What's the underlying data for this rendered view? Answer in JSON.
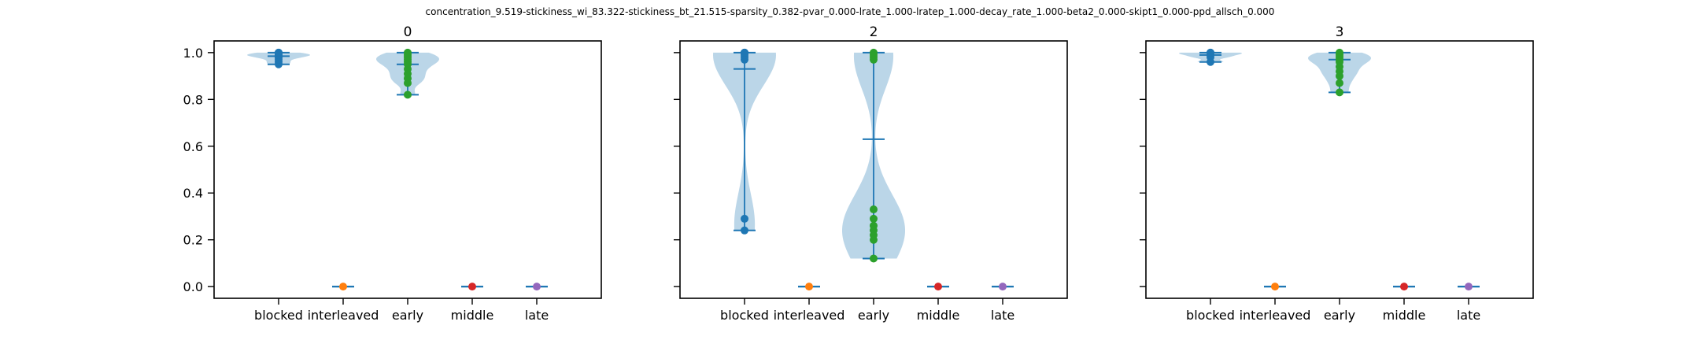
{
  "figure": {
    "suptitle": "concentration_9.519-stickiness_wi_83.322-stickiness_bt_21.515-sparsity_0.382-pvar_0.000-lrate_1.000-lratep_1.000-decay_rate_1.000-beta2_0.000-skipt1_0.000-ppd_allsch_0.000"
  },
  "chart_data": [
    {
      "type": "violin",
      "title": "0",
      "categories": [
        "blocked",
        "interleaved",
        "early",
        "middle",
        "late"
      ],
      "ylim": [
        -0.05,
        1.05
      ],
      "yticks": [
        0.0,
        0.2,
        0.4,
        0.6,
        0.8,
        1.0
      ],
      "ytick_labels": [
        "0.0",
        "0.2",
        "0.4",
        "0.6",
        "0.8",
        "1.0"
      ],
      "show_yticklabels": true,
      "series": [
        {
          "values": [
            0.95,
            0.96,
            0.97,
            0.98,
            0.98,
            0.99,
            0.99,
            0.99,
            1.0,
            1.0
          ],
          "min": 0.95,
          "median": 0.985,
          "max": 1.0,
          "color": "#1f77b4"
        },
        {
          "values": [
            0.0
          ],
          "min": 0.0,
          "median": 0.0,
          "max": 0.0,
          "color": "#ff7f0e"
        },
        {
          "values": [
            0.82,
            0.87,
            0.89,
            0.91,
            0.93,
            0.95,
            0.96,
            0.97,
            0.98,
            0.99,
            1.0
          ],
          "min": 0.82,
          "median": 0.95,
          "max": 1.0,
          "color": "#2ca02c"
        },
        {
          "values": [
            0.0
          ],
          "min": 0.0,
          "median": 0.0,
          "max": 0.0,
          "color": "#d62728"
        },
        {
          "values": [
            0.0
          ],
          "min": 0.0,
          "median": 0.0,
          "max": 0.0,
          "color": "#9467bd"
        }
      ]
    },
    {
      "type": "violin",
      "title": "2",
      "categories": [
        "blocked",
        "interleaved",
        "early",
        "middle",
        "late"
      ],
      "ylim": [
        -0.05,
        1.05
      ],
      "yticks": [
        0.0,
        0.2,
        0.4,
        0.6,
        0.8,
        1.0
      ],
      "ytick_labels": [
        "0.0",
        "0.2",
        "0.4",
        "0.6",
        "0.8",
        "1.0"
      ],
      "show_yticklabels": false,
      "series": [
        {
          "values": [
            0.24,
            0.29,
            0.97,
            0.98,
            0.99,
            1.0,
            1.0,
            1.0
          ],
          "min": 0.24,
          "median": 0.93,
          "max": 1.0,
          "color": "#1f77b4"
        },
        {
          "values": [
            0.0
          ],
          "min": 0.0,
          "median": 0.0,
          "max": 0.0,
          "color": "#ff7f0e"
        },
        {
          "values": [
            0.12,
            0.2,
            0.22,
            0.24,
            0.26,
            0.29,
            0.33,
            0.97,
            0.98,
            0.99,
            1.0
          ],
          "min": 0.12,
          "median": 0.63,
          "max": 1.0,
          "color": "#2ca02c"
        },
        {
          "values": [
            0.0
          ],
          "min": 0.0,
          "median": 0.0,
          "max": 0.0,
          "color": "#d62728"
        },
        {
          "values": [
            0.0
          ],
          "min": 0.0,
          "median": 0.0,
          "max": 0.0,
          "color": "#9467bd"
        }
      ]
    },
    {
      "type": "violin",
      "title": "3",
      "categories": [
        "blocked",
        "interleaved",
        "early",
        "middle",
        "late"
      ],
      "ylim": [
        -0.05,
        1.05
      ],
      "yticks": [
        0.0,
        0.2,
        0.4,
        0.6,
        0.8,
        1.0
      ],
      "ytick_labels": [
        "0.0",
        "0.2",
        "0.4",
        "0.6",
        "0.8",
        "1.0"
      ],
      "show_yticklabels": false,
      "series": [
        {
          "values": [
            0.96,
            0.98,
            0.99,
            1.0,
            1.0
          ],
          "min": 0.96,
          "median": 0.99,
          "max": 1.0,
          "color": "#1f77b4"
        },
        {
          "values": [
            0.0
          ],
          "min": 0.0,
          "median": 0.0,
          "max": 0.0,
          "color": "#ff7f0e"
        },
        {
          "values": [
            0.83,
            0.87,
            0.9,
            0.92,
            0.94,
            0.96,
            0.97,
            0.98,
            0.99,
            1.0
          ],
          "min": 0.83,
          "median": 0.97,
          "max": 1.0,
          "color": "#2ca02c"
        },
        {
          "values": [
            0.0
          ],
          "min": 0.0,
          "median": 0.0,
          "max": 0.0,
          "color": "#d62728"
        },
        {
          "values": [
            0.0
          ],
          "min": 0.0,
          "median": 0.0,
          "max": 0.0,
          "color": "#9467bd"
        }
      ]
    }
  ]
}
